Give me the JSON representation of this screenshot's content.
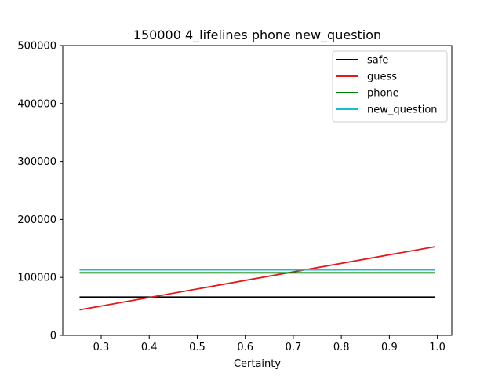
{
  "chart_data": {
    "type": "line",
    "title": "150000 4_lifelines phone new_question",
    "xlabel": "Certainty",
    "ylabel": "",
    "xlim": [
      0.22,
      1.03
    ],
    "ylim": [
      0,
      500000
    ],
    "xticks": [
      0.3,
      0.4,
      0.5,
      0.6,
      0.7,
      0.8,
      0.9,
      1.0
    ],
    "xtick_labels": [
      "0.3",
      "0.4",
      "0.5",
      "0.6",
      "0.7",
      "0.8",
      "0.9",
      "1.0"
    ],
    "yticks": [
      0,
      100000,
      200000,
      300000,
      400000,
      500000
    ],
    "ytick_labels": [
      "0",
      "100000",
      "200000",
      "300000",
      "400000",
      "500000"
    ],
    "grid": false,
    "legend_position": "top-right",
    "series": [
      {
        "name": "safe",
        "color": "#000000",
        "x": [
          0.255,
          0.995
        ],
        "y": [
          66000,
          66000
        ]
      },
      {
        "name": "guess",
        "color": "#e41a1c",
        "x": [
          0.255,
          0.995
        ],
        "y": [
          44000,
          153000
        ]
      },
      {
        "name": "phone",
        "color": "#008000",
        "x": [
          0.255,
          0.995
        ],
        "y": [
          108000,
          108000
        ]
      },
      {
        "name": "new_question",
        "color": "#17becf",
        "x": [
          0.255,
          0.995
        ],
        "y": [
          113000,
          113000
        ]
      }
    ]
  }
}
